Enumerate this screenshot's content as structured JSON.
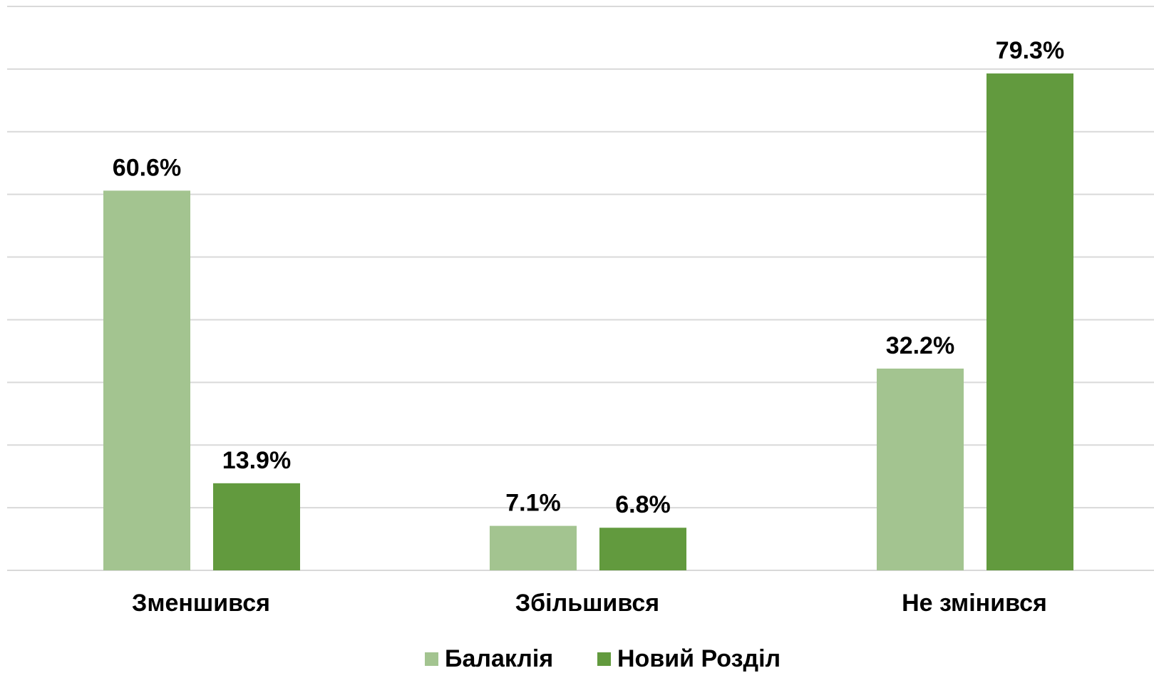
{
  "chart_data": {
    "type": "bar",
    "categories": [
      "Зменшився",
      "Збільшився",
      "Не змінився"
    ],
    "series": [
      {
        "name": "Балаклія",
        "color": "#a3c490",
        "values": [
          60.6,
          7.1,
          32.2
        ],
        "value_labels": [
          "60.6%",
          "7.1%",
          "32.2%"
        ]
      },
      {
        "name": "Новий Розділ",
        "color": "#629a3e",
        "values": [
          13.9,
          6.8,
          79.3
        ],
        "value_labels": [
          "13.9%",
          "6.8%",
          "79.3%"
        ]
      }
    ],
    "ylim": [
      0,
      90
    ],
    "yticks": [
      0,
      10,
      20,
      30,
      40,
      50,
      60,
      70,
      80,
      90
    ],
    "grid": true,
    "legend": "bottom"
  }
}
